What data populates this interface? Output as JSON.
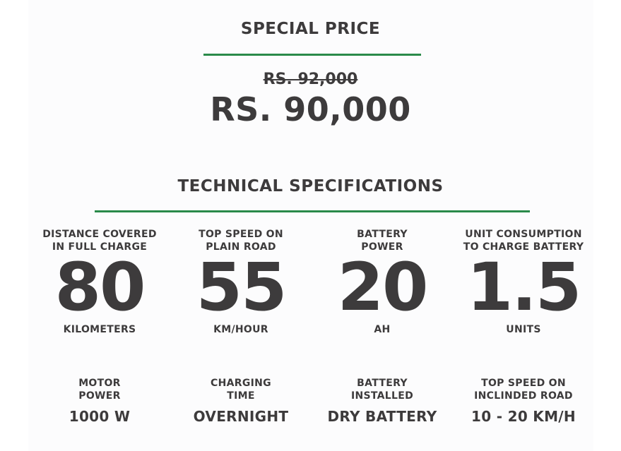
{
  "price": {
    "title": "SPECIAL PRICE",
    "old_price": "RS. 92,000",
    "new_price": "RS. 90,000"
  },
  "specs": {
    "title": "TECHNICAL SPECIFICATIONS",
    "row1": [
      {
        "label_line1": "DISTANCE COVERED",
        "label_line2": "IN FULL CHARGE",
        "value": "80",
        "unit": "KILOMETERS"
      },
      {
        "label_line1": "TOP SPEED ON",
        "label_line2": "PLAIN ROAD",
        "value": "55",
        "unit": "KM/HOUR"
      },
      {
        "label_line1": "BATTERY",
        "label_line2": "POWER",
        "value": "20",
        "unit": "AH"
      },
      {
        "label_line1": "UNIT CONSUMPTION",
        "label_line2": "TO CHARGE BATTERY",
        "value": "1.5",
        "unit": "UNITS"
      }
    ],
    "row2": [
      {
        "label_line1": "MOTOR",
        "label_line2": "POWER",
        "value": "1000 W"
      },
      {
        "label_line1": "CHARGING",
        "label_line2": "TIME",
        "value": "OVERNIGHT"
      },
      {
        "label_line1": "BATTERY",
        "label_line2": "INSTALLED",
        "value": "DRY BATTERY"
      },
      {
        "label_line1": "TOP SPEED ON",
        "label_line2": "INCLINDED ROAD",
        "value": "10 - 20 KM/H"
      }
    ]
  },
  "colors": {
    "accent": "#2a8a4a",
    "text": "#3d3b3c"
  }
}
